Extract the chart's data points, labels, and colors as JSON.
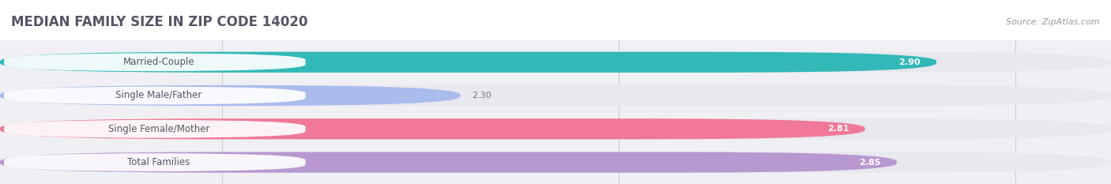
{
  "title": "MEDIAN FAMILY SIZE IN ZIP CODE 14020",
  "source": "Source: ZipAtlas.com",
  "categories": [
    "Married-Couple",
    "Single Male/Father",
    "Single Female/Mother",
    "Total Families"
  ],
  "values": [
    2.9,
    2.3,
    2.81,
    2.85
  ],
  "bar_colors": [
    "#33b8b8",
    "#aabbee",
    "#f07898",
    "#b898d0"
  ],
  "xlim_min": 1.72,
  "xlim_max": 3.12,
  "xstart": 1.72,
  "xticks": [
    2.0,
    2.5,
    3.0
  ],
  "background_color": "#ffffff",
  "chart_bg_color": "#f0f0f4",
  "bar_bg_color": "#e8e8ee",
  "title_fontsize": 12,
  "label_fontsize": 8.5,
  "value_fontsize": 8,
  "source_fontsize": 8,
  "bar_height": 0.62,
  "bar_gap": 0.38
}
